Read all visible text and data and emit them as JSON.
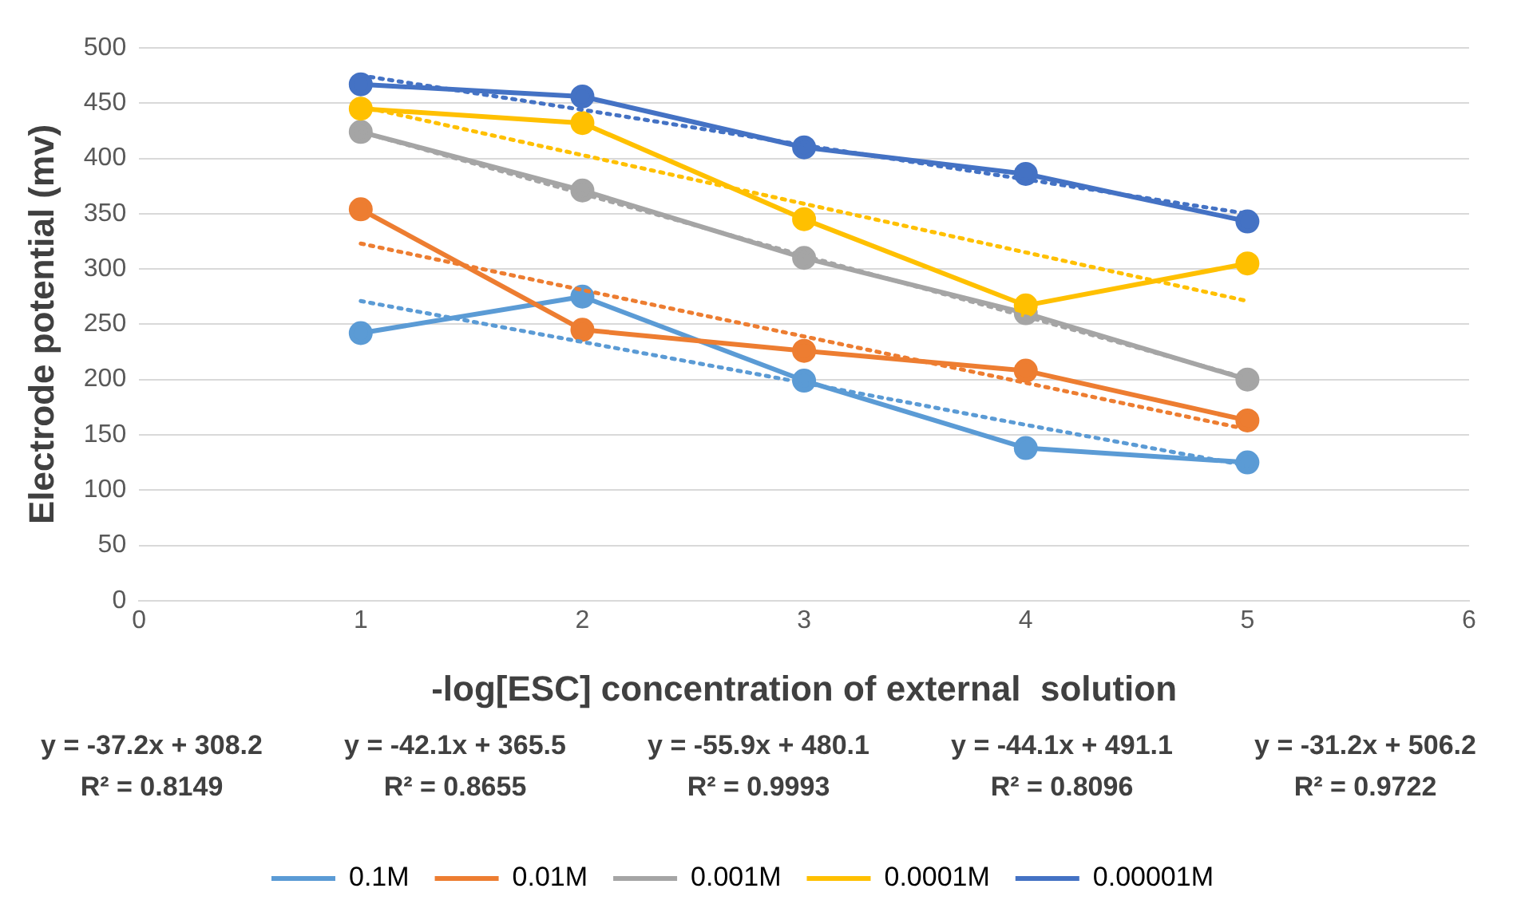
{
  "chart_data": {
    "type": "line",
    "xlabel": "-log[ESC] concentration of external  solution",
    "ylabel": "Electrode potential (mv)",
    "x": [
      1,
      2,
      3,
      4,
      5
    ],
    "xlim": [
      0,
      6
    ],
    "xticks": [
      0,
      1,
      2,
      3,
      4,
      5,
      6
    ],
    "ylim": [
      0,
      500
    ],
    "yticks": [
      0,
      50,
      100,
      150,
      200,
      250,
      300,
      350,
      400,
      450,
      500
    ],
    "grid": "y",
    "legend": "bottom",
    "series": [
      {
        "name": "0.1M",
        "color": "#5b9bd5",
        "values": [
          242,
          275,
          199,
          138,
          125
        ],
        "marker": "circle",
        "line_style": "solid"
      },
      {
        "name": "0.01M",
        "color": "#ed7d31",
        "values": [
          354,
          245,
          226,
          208,
          163
        ],
        "marker": "circle",
        "line_style": "solid"
      },
      {
        "name": "0.001M",
        "color": "#a5a5a5",
        "values": [
          424,
          371,
          310,
          260,
          200
        ],
        "marker": "circle",
        "line_style": "solid"
      },
      {
        "name": "0.0001M",
        "color": "#ffc000",
        "values": [
          445,
          432,
          345,
          267,
          305
        ],
        "marker": "circle",
        "line_style": "solid"
      },
      {
        "name": "0.00001M",
        "color": "#4472c4",
        "values": [
          467,
          456,
          410,
          386,
          343
        ],
        "marker": "circle",
        "line_style": "solid"
      },
      {
        "type": "line",
        "color": "#5b9bd5",
        "values": [
          271,
          234,
          197,
          159,
          122
        ],
        "marker": "none",
        "line_style": "dotted"
      },
      {
        "type": "line",
        "color": "#ed7d31",
        "values": [
          323,
          281,
          239,
          197,
          155
        ],
        "marker": "none",
        "line_style": "dotted"
      },
      {
        "type": "line",
        "color": "#a5a5a5",
        "values": [
          424,
          368,
          312,
          257,
          201
        ],
        "marker": "none",
        "line_style": "dotted"
      },
      {
        "type": "line",
        "color": "#ffc000",
        "values": [
          447,
          403,
          359,
          315,
          271
        ],
        "marker": "none",
        "line_style": "dotted"
      },
      {
        "type": "line",
        "color": "#4472c4",
        "values": [
          475,
          444,
          412,
          381,
          350
        ],
        "marker": "none",
        "line_style": "dotted"
      }
    ],
    "annotations": [
      "y = -37.2x + 308.2",
      "R² = 0.8149",
      "y = -42.1x + 365.5",
      "R² = 0.8655",
      "y = -55.9x + 480.1",
      "R² = 0.9993",
      "y = -44.1x + 491.1",
      "R² = 0.8096",
      "y = -31.2x + 506.2",
      "R² = 0.9722"
    ]
  }
}
